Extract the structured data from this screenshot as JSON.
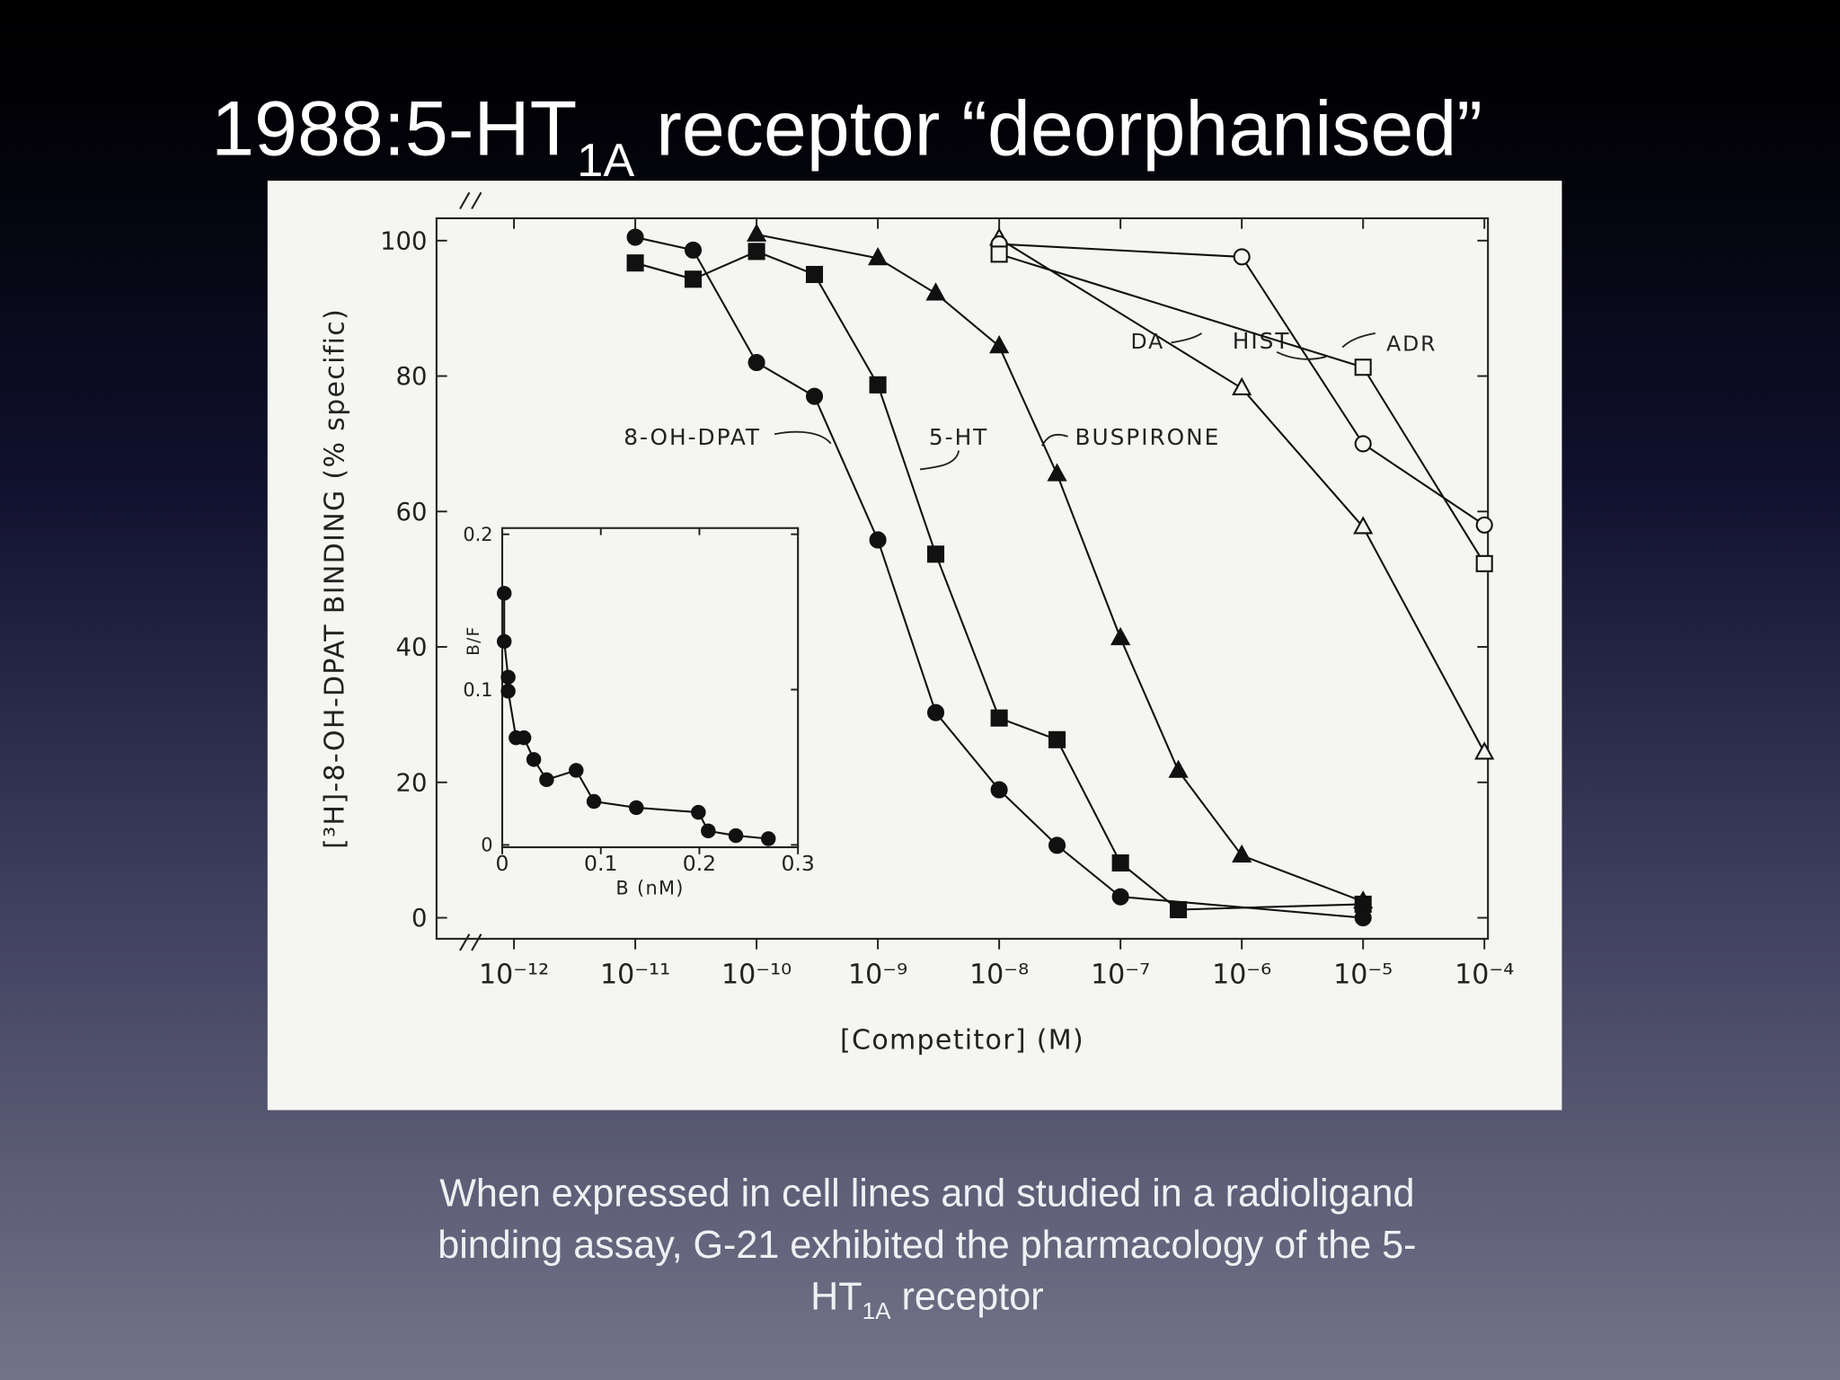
{
  "slide": {
    "title": {
      "main": "1988:5-HT",
      "sub": "1A",
      "rest": " receptor “deorphanised”"
    },
    "caption": {
      "line1": "When expressed in cell lines and studied in a radioligand",
      "line2": "binding assay, G-21 exhibited the pharmacology of the 5-",
      "line3_main": "HT",
      "line3_sub": "1A",
      "line3_rest": " receptor"
    }
  },
  "chart_data": [
    {
      "type": "scatter",
      "xscale": "log",
      "grid": false,
      "xlabel": "[Competitor] (M)",
      "ylabel": "[³H]-8-OH-DPAT BINDING (% specific)",
      "xlim": [
        2.3e-13,
        0.000107
      ],
      "ylim": [
        -3.1,
        103.3
      ],
      "xticks": [
        {
          "value": 1e-12,
          "label": "10⁻¹²"
        },
        {
          "value": 1e-11,
          "label": "10⁻¹¹"
        },
        {
          "value": 1e-10,
          "label": "10⁻¹⁰"
        },
        {
          "value": 1e-09,
          "label": "10⁻⁹"
        },
        {
          "value": 1e-08,
          "label": "10⁻⁸"
        },
        {
          "value": 1e-07,
          "label": "10⁻⁷"
        },
        {
          "value": 1e-06,
          "label": "10⁻⁶"
        },
        {
          "value": 1e-05,
          "label": "10⁻⁵"
        },
        {
          "value": 0.0001,
          "label": "10⁻⁴"
        }
      ],
      "yticks": [
        0,
        20,
        40,
        60,
        80,
        100
      ],
      "series": [
        {
          "name": "8-OH-DPAT",
          "color": "#111111",
          "marker": "circle",
          "filled": true,
          "x": [
            1e-11,
            3e-11,
            1e-10,
            3e-10,
            1e-09,
            3e-09,
            1e-08,
            3e-08,
            1e-07,
            1e-05
          ],
          "values": [
            100.5,
            98.6,
            82,
            77,
            55.8,
            30.3,
            18.9,
            10.7,
            3.1,
            0
          ]
        },
        {
          "name": "5-HT",
          "color": "#111111",
          "marker": "square",
          "filled": true,
          "x": [
            1e-11,
            3e-11,
            1e-10,
            3e-10,
            1e-09,
            3e-09,
            1e-08,
            3e-08,
            1e-07,
            3e-07,
            1e-05
          ],
          "values": [
            96.7,
            94.3,
            98.4,
            95,
            78.7,
            53.7,
            29.5,
            26.3,
            8.1,
            1.2,
            2
          ]
        },
        {
          "name": "BUSPIRONE",
          "color": "#111111",
          "marker": "triangle",
          "filled": true,
          "x": [
            1e-10,
            1e-09,
            3e-09,
            1e-08,
            3e-08,
            1e-07,
            3e-07,
            1e-06,
            1e-05
          ],
          "values": [
            100.9,
            97.4,
            92.2,
            84.4,
            65.5,
            41.3,
            21.7,
            9.2,
            2.4
          ]
        },
        {
          "name": "DA",
          "color": "#111111",
          "marker": "triangle",
          "filled": false,
          "x": [
            1e-08,
            1e-06,
            1e-05,
            0.0001
          ],
          "values": [
            100.3,
            78.2,
            57.7,
            24.4
          ]
        },
        {
          "name": "HIST",
          "color": "#111111",
          "marker": "circle",
          "filled": false,
          "x": [
            1e-08,
            1e-06,
            1e-05,
            0.0001
          ],
          "values": [
            99.5,
            97.6,
            70,
            58
          ]
        },
        {
          "name": "ADR",
          "color": "#111111",
          "marker": "square",
          "filled": false,
          "x": [
            1e-08,
            1e-05,
            0.0001
          ],
          "values": [
            98,
            81.3,
            52.3
          ]
        }
      ]
    },
    {
      "type": "scatter",
      "xscale": "linear",
      "grid": false,
      "xlabel": "B (nM)",
      "ylabel": "B/F",
      "xlim": [
        0,
        0.3
      ],
      "ylim": [
        -0.0015,
        0.204
      ],
      "xticks": [
        0,
        0.1,
        0.2,
        0.3
      ],
      "yticks": [
        0,
        0.1,
        0.2
      ],
      "series": [
        {
          "color": "#111111",
          "marker": "circle",
          "filled": true,
          "x": [
            0.002,
            0.002,
            0.006,
            0.006,
            0.014,
            0.022,
            0.032,
            0.045,
            0.075,
            0.093,
            0.136,
            0.199,
            0.209,
            0.237,
            0.27
          ],
          "values": [
            0.162,
            0.131,
            0.108,
            0.099,
            0.069,
            0.069,
            0.055,
            0.042,
            0.048,
            0.028,
            0.024,
            0.021,
            0.009,
            0.006,
            0.004
          ]
        }
      ]
    }
  ]
}
